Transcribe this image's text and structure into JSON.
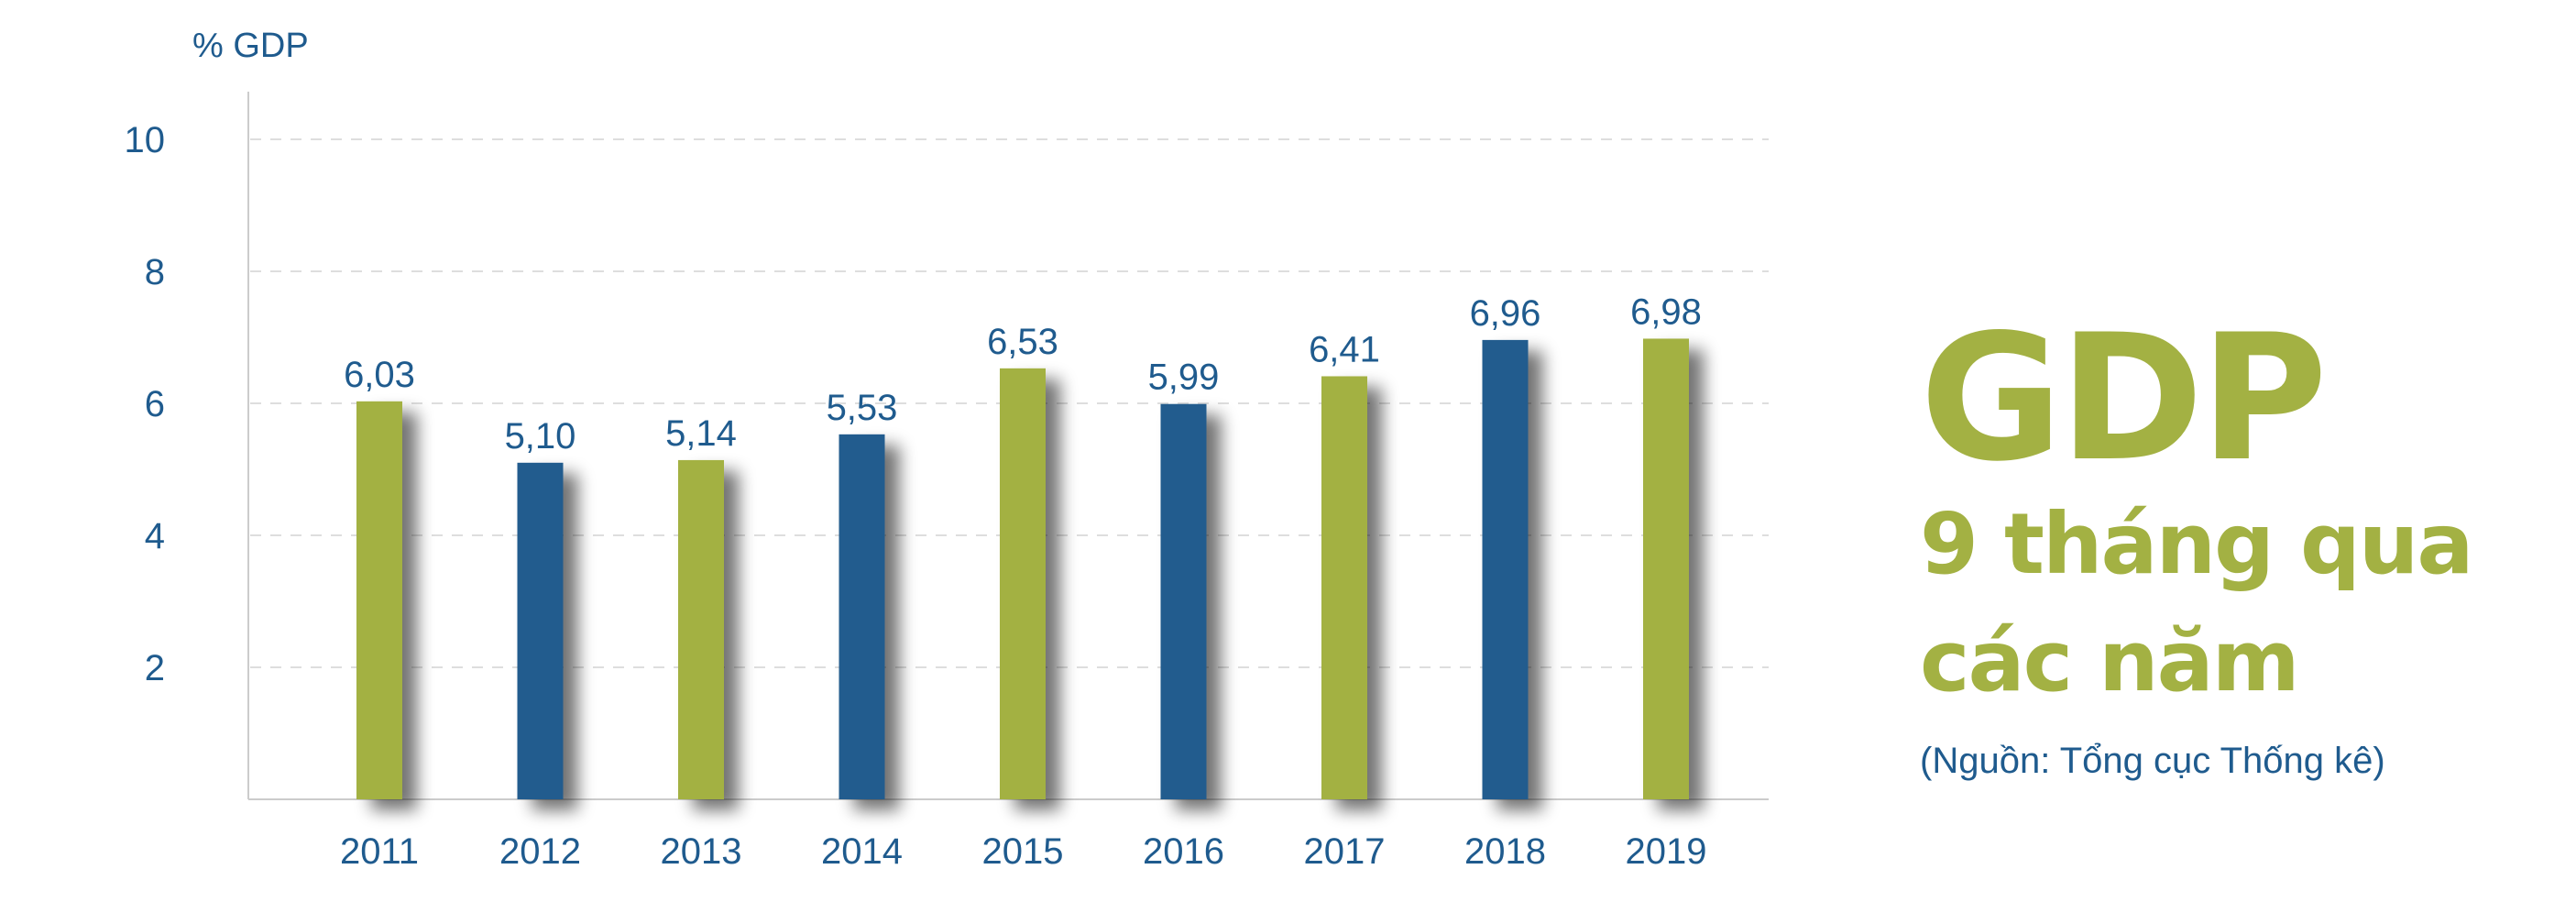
{
  "chart_data": {
    "type": "bar",
    "ylabel": "% GDP",
    "ylim": [
      0,
      11
    ],
    "yticks": [
      2,
      4,
      6,
      8,
      10
    ],
    "grid": true,
    "categories": [
      "2011",
      "2012",
      "2013",
      "2014",
      "2015",
      "2016",
      "2017",
      "2018",
      "2019"
    ],
    "values": [
      6.03,
      5.1,
      5.14,
      5.53,
      6.53,
      5.99,
      6.41,
      6.96,
      6.98
    ],
    "value_labels": [
      "6,03",
      "5,10",
      "5,14",
      "5,53",
      "6,53",
      "5,99",
      "6,41",
      "6,96",
      "6,98"
    ],
    "bar_colors": [
      "#a3b143",
      "#245b8e",
      "#a3b143",
      "#245b8e",
      "#a3b143",
      "#245b8e",
      "#a3b143",
      "#245b8e",
      "#a3b143"
    ]
  },
  "title": {
    "main": "GDP",
    "line1": "9 tháng qua",
    "line2": "các năm",
    "source": "(Nguồn: Tổng cục Thống kê)"
  }
}
